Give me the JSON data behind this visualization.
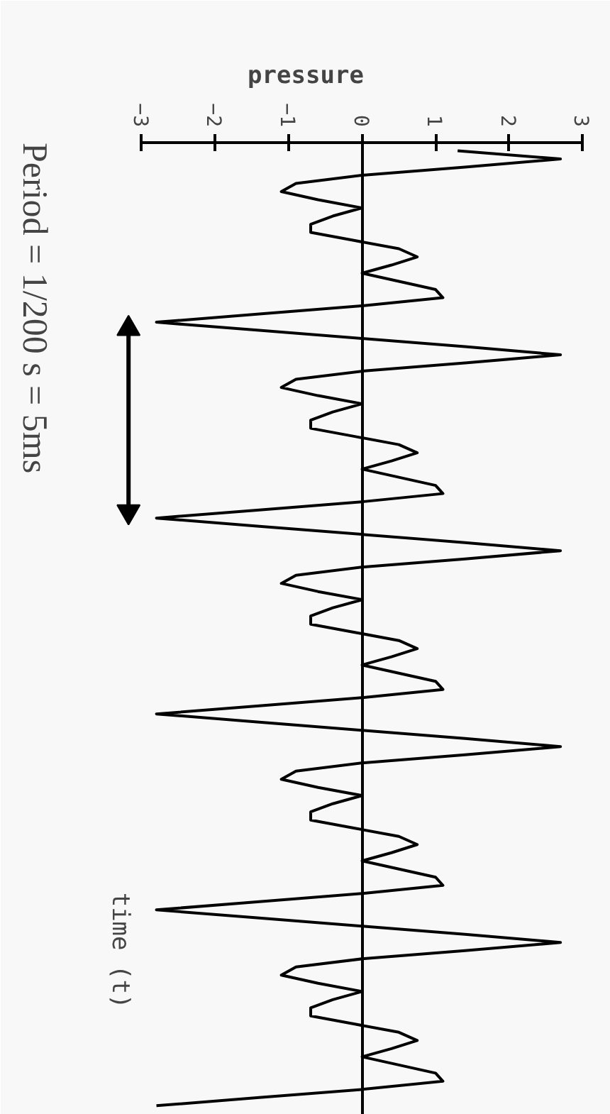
{
  "chart_data": {
    "type": "line",
    "orientation": "horizontal",
    "xlabel": "pressure",
    "ylabel": "time (t)",
    "annotations": [
      "Period = 1/200 s = 5ms"
    ],
    "color": "#000000",
    "xlim": [
      -3,
      3
    ],
    "xticks": [
      -3,
      -2,
      -1,
      0,
      1,
      2,
      3
    ],
    "categories": [
      null,
      null,
      null,
      null,
      null,
      null,
      null,
      null,
      null,
      null,
      null,
      null,
      null,
      null,
      null,
      null,
      null,
      null,
      null,
      null,
      null,
      null,
      null,
      null,
      null,
      null,
      null,
      null,
      null,
      null,
      null,
      null,
      null,
      null,
      null,
      null,
      null,
      null,
      null,
      null,
      null,
      null,
      null,
      null,
      null,
      null,
      null,
      null,
      null,
      null,
      null,
      null,
      null,
      null,
      null,
      null,
      null,
      null,
      null,
      null,
      null,
      null,
      null,
      null,
      null,
      null,
      null,
      null,
      null,
      null,
      null,
      null,
      null,
      null,
      null,
      null,
      null,
      null,
      null,
      null,
      null,
      null,
      null,
      null,
      null,
      null,
      null,
      null,
      null,
      null,
      null,
      null,
      null,
      null,
      null,
      null,
      null,
      null,
      null,
      null,
      null,
      null,
      null,
      null,
      null,
      null,
      null,
      null,
      null,
      null,
      null,
      null,
      null,
      null,
      null,
      null,
      null,
      null
    ],
    "values": [
      1.3,
      2.7,
      1.4,
      0,
      -0.9,
      -1.1,
      -0.6,
      0,
      -0.4,
      -0.7,
      -0.7,
      -0.1,
      0.5,
      0.75,
      0.4,
      0,
      0.5,
      1.0,
      1.1,
      0,
      -1.4,
      -2.8,
      -1.4,
      0,
      1.4,
      2.7,
      1.4,
      0,
      -0.9,
      -1.1,
      -0.6,
      0,
      -0.4,
      -0.7,
      -0.7,
      -0.1,
      0.5,
      0.75,
      0.4,
      0,
      0.5,
      1.0,
      1.1,
      0,
      -1.4,
      -2.8,
      -1.4,
      0,
      1.4,
      2.7,
      1.4,
      0,
      -0.9,
      -1.1,
      -0.6,
      0,
      -0.4,
      -0.7,
      -0.7,
      -0.1,
      0.5,
      0.75,
      0.4,
      0,
      0.5,
      1.0,
      1.1,
      0,
      -1.4,
      -2.8,
      -1.4,
      0,
      1.4,
      2.7,
      1.4,
      0,
      -0.9,
      -1.1,
      -0.6,
      0,
      -0.4,
      -0.7,
      -0.7,
      -0.1,
      0.5,
      0.75,
      0.4,
      0,
      0.5,
      1.0,
      1.1,
      0,
      -1.4,
      -2.8,
      -1.4,
      0,
      1.4,
      2.7,
      1.4,
      0,
      -0.9,
      -1.1,
      -0.6,
      0,
      -0.4,
      -0.7,
      -0.7,
      -0.1,
      0.5,
      0.75,
      0.4,
      0,
      0.5,
      1.0,
      1.1,
      0,
      -1.4,
      -2.8
    ]
  }
}
